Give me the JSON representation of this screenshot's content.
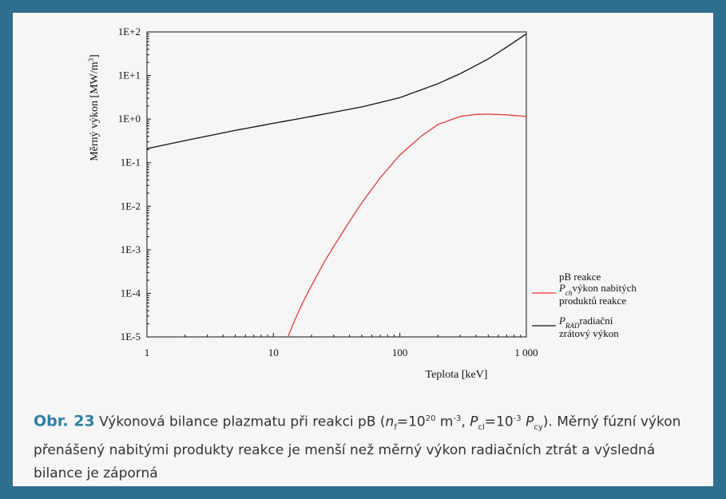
{
  "chart_data": {
    "type": "line",
    "xscale": "log",
    "yscale": "log",
    "xlim": [
      1,
      1000
    ],
    "ylim": [
      1e-05,
      100
    ],
    "xlabel": "Teplota [keV]",
    "ylabel": "Měrný výkon  [MW/m",
    "ylabel_sup": "3",
    "ylabel_close": "]",
    "x_ticks": [
      {
        "value": 1,
        "label": "1"
      },
      {
        "value": 10,
        "label": "10"
      },
      {
        "value": 100,
        "label": "100"
      },
      {
        "value": 1000,
        "label": "1 000"
      }
    ],
    "y_ticks": [
      {
        "value": 1e-05,
        "label": "1E-5"
      },
      {
        "value": 0.0001,
        "label": "1E-4"
      },
      {
        "value": 0.001,
        "label": "1E-3"
      },
      {
        "value": 0.01,
        "label": "1E-2"
      },
      {
        "value": 0.1,
        "label": "1E-1"
      },
      {
        "value": 1,
        "label": "1E+0"
      },
      {
        "value": 10,
        "label": "1E+1"
      },
      {
        "value": 100,
        "label": "1E+2"
      }
    ],
    "legend": {
      "title": "pB reakce",
      "placement": "right"
    },
    "series": [
      {
        "name": "výkon nabitých produktů reakce",
        "symbol": "P",
        "symbol_sub": "ch",
        "line1": "výkon nabitých",
        "line2": "produktů reakce",
        "color": "#e53935",
        "x": [
          13,
          15,
          17,
          20,
          25,
          30,
          40,
          50,
          70,
          100,
          150,
          200,
          300,
          400,
          500,
          700,
          1000
        ],
        "y": [
          1e-05,
          2.7e-05,
          6e-05,
          0.00015,
          0.0005,
          0.0012,
          0.0045,
          0.012,
          0.045,
          0.15,
          0.42,
          0.75,
          1.15,
          1.28,
          1.3,
          1.25,
          1.15
        ]
      },
      {
        "name": "radiační zrátový výkon",
        "symbol": "P",
        "symbol_sub": "RAD",
        "line1": "radiační",
        "line2": "zrátový výkon",
        "color": "#111111",
        "x": [
          1,
          2,
          5,
          10,
          20,
          50,
          100,
          200,
          300,
          500,
          700,
          1000
        ],
        "y": [
          0.21,
          0.32,
          0.55,
          0.8,
          1.15,
          1.9,
          3.1,
          6.5,
          11,
          24,
          45,
          90
        ]
      }
    ]
  },
  "caption": {
    "label": "Obr. 23",
    "text1": "Výkonová bilance plazmatu při reakci pB (",
    "n": "n",
    "n_sub": "f",
    "eq1": "=10",
    "eq1_sup": "20",
    "unit": " m",
    "unit_sup": "-3",
    "sep": ", ",
    "p": "P",
    "p_sub": "cl",
    "eq2": "=10",
    "eq2_sup": "-3",
    "p2": " P",
    "p2_sub": "cy",
    "text2": "). Měrný fúzní výkon přenášený nabitými produkty reakce je menší než měrný výkon radiačních ztrát a výsledná bilance je záporná"
  }
}
